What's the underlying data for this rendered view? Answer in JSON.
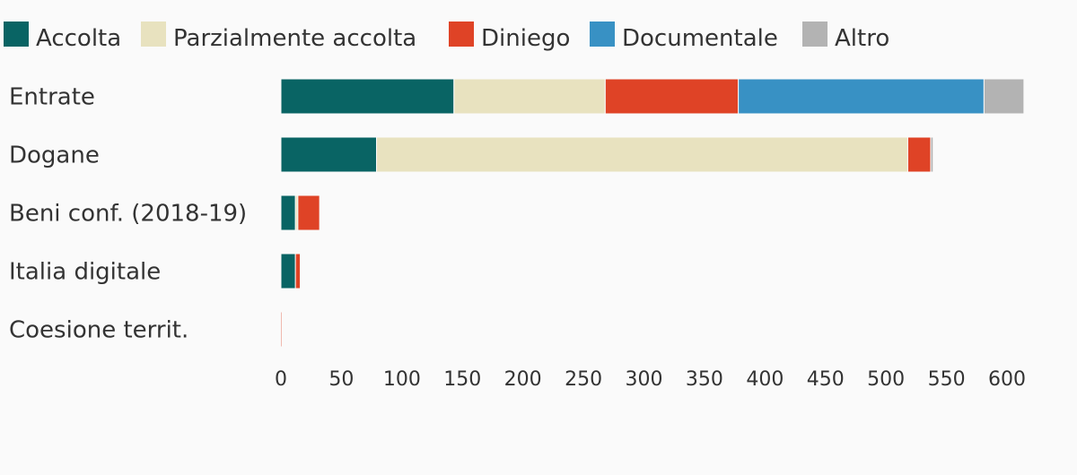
{
  "chart_data": {
    "type": "bar",
    "orientation": "horizontal",
    "stacked": true,
    "title": "",
    "xlabel": "",
    "ylabel": "",
    "xlim": [
      0,
      615
    ],
    "x_ticks": [
      "0",
      "50",
      "100",
      "150",
      "200",
      "250",
      "300",
      "350",
      "400",
      "450",
      "500",
      "550",
      "600"
    ],
    "grid": false,
    "legend_position": "top-left",
    "categories": [
      "Entrate",
      "Dogane",
      "Beni conf. (2018-19)",
      "Italia digitale",
      "Coesione territ."
    ],
    "series": [
      {
        "name": "Accolta",
        "color": "#096464",
        "values": [
          143,
          79,
          12,
          12,
          0
        ]
      },
      {
        "name": "Parzialmente accolta",
        "color": "#e8e2bf",
        "values": [
          125,
          439,
          2,
          0,
          0
        ]
      },
      {
        "name": "Diniego",
        "color": "#df4326",
        "values": [
          110,
          19,
          18,
          4,
          1
        ]
      },
      {
        "name": "Documentale",
        "color": "#3891c4",
        "values": [
          203,
          0,
          0,
          0,
          0
        ]
      },
      {
        "name": "Altro",
        "color": "#b3b3b3",
        "values": [
          33,
          2,
          0,
          0,
          0
        ]
      }
    ]
  }
}
